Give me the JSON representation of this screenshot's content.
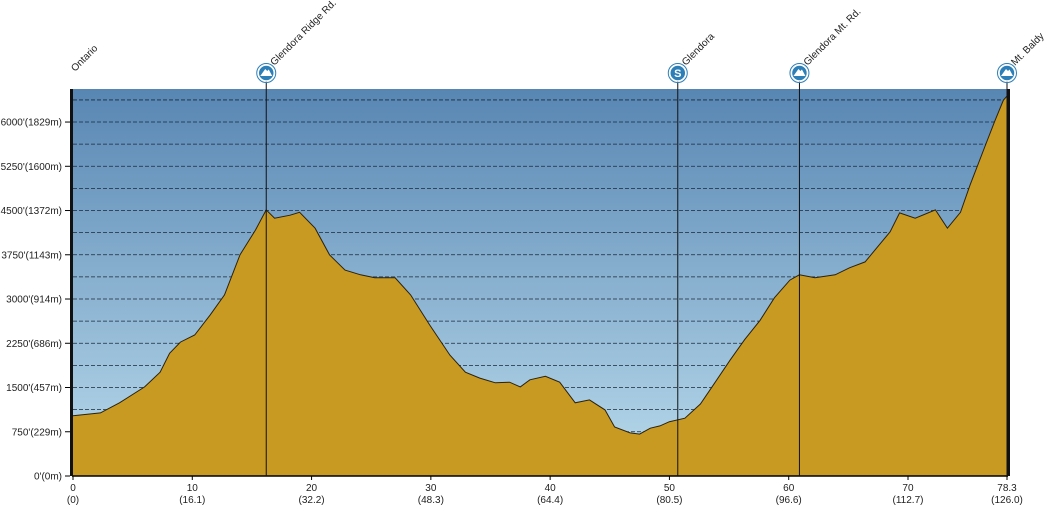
{
  "chart_data": {
    "type": "elevation-profile",
    "xlim": [
      0,
      78.3
    ],
    "ylim": [
      0,
      6560
    ],
    "xticks": [
      0,
      10,
      20,
      30,
      40,
      50,
      60,
      70,
      78.3
    ],
    "xtick_km_labels": [
      "(0)",
      "(16.1)",
      "(32.2)",
      "(48.3)",
      "(64.4)",
      "(80.5)",
      "(96.6)",
      "(112.7)",
      "(126.0)"
    ],
    "yticks": [
      {
        "value": 0,
        "label": "0'(0m)"
      },
      {
        "value": 750,
        "label": "750'(229m)"
      },
      {
        "value": 1500,
        "label": "1500'(457m)"
      },
      {
        "value": 2250,
        "label": "2250'(686m)"
      },
      {
        "value": 3000,
        "label": "3000'(914m)"
      },
      {
        "value": 3750,
        "label": "3750'(1143m)"
      },
      {
        "value": 4500,
        "label": "4500'(1372m)"
      },
      {
        "value": 5250,
        "label": "5250'(1600m)"
      },
      {
        "value": 6000,
        "label": "6000'(1829m)"
      }
    ],
    "grid_lines": [
      375,
      750,
      1125,
      1500,
      1875,
      2250,
      2625,
      3000,
      3375,
      3750,
      4125,
      4500,
      4875,
      5250,
      5625,
      6000,
      6375
    ],
    "fill_color": "#c99a22",
    "waypoints": [
      {
        "name": "Ontario",
        "x": 0
      },
      {
        "name": "Glendora Ridge Rd.",
        "x": 16.2,
        "icon": "summit"
      },
      {
        "name": "Glendora",
        "x": 50.7,
        "icon": "start",
        "icon_label": "S"
      },
      {
        "name": "Glendora Mt. Rd.",
        "x": 60.9,
        "icon": "summit"
      },
      {
        "name": "Mt. Baldy",
        "x": 78.3,
        "icon": "summit"
      }
    ],
    "profile": {
      "miles": [
        0,
        2.3,
        3.9,
        6.0,
        7.3,
        8.1,
        9.0,
        10.2,
        11.5,
        12.7,
        14.0,
        15.3,
        16.2,
        16.9,
        18.2,
        19.0,
        20.3,
        21.5,
        22.8,
        24.1,
        25.3,
        27.0,
        28.3,
        29.9,
        31.6,
        32.9,
        34.1,
        35.4,
        36.6,
        37.5,
        38.3,
        39.6,
        40.8,
        42.1,
        43.3,
        44.6,
        45.4,
        46.7,
        47.5,
        48.4,
        49.2,
        50.0,
        51.3,
        52.6,
        53.8,
        55.1,
        56.3,
        57.6,
        58.8,
        60.1,
        60.9,
        62.2,
        63.9,
        65.1,
        66.4,
        67.6,
        68.5,
        69.3,
        70.6,
        72.3,
        73.3,
        74.4,
        75.2,
        76.5,
        77.3,
        78.0,
        78.3
      ],
      "elevation": [
        1020,
        1070,
        1240,
        1510,
        1760,
        2080,
        2270,
        2390,
        2730,
        3070,
        3750,
        4170,
        4510,
        4370,
        4420,
        4470,
        4200,
        3750,
        3490,
        3410,
        3360,
        3360,
        3070,
        2560,
        2050,
        1760,
        1660,
        1580,
        1590,
        1510,
        1630,
        1690,
        1590,
        1240,
        1290,
        1120,
        830,
        730,
        710,
        810,
        850,
        920,
        980,
        1220,
        1580,
        1970,
        2310,
        2640,
        3020,
        3320,
        3410,
        3360,
        3410,
        3530,
        3630,
        3920,
        4140,
        4460,
        4370,
        4510,
        4200,
        4470,
        4930,
        5610,
        6030,
        6370,
        6440
      ]
    }
  }
}
